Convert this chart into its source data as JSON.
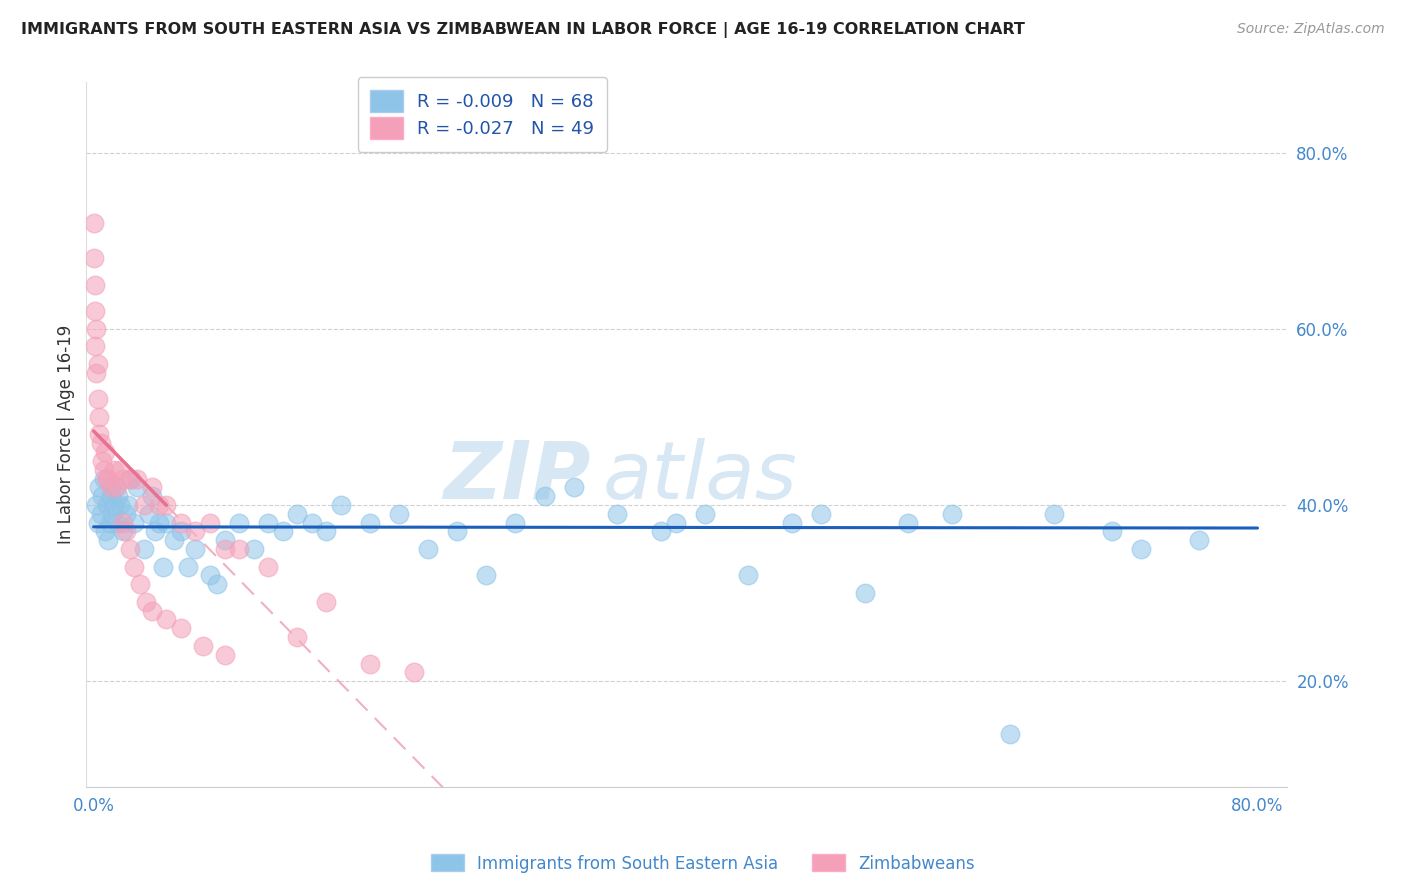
{
  "title": "IMMIGRANTS FROM SOUTH EASTERN ASIA VS ZIMBABWEAN IN LABOR FORCE | AGE 16-19 CORRELATION CHART",
  "source": "Source: ZipAtlas.com",
  "ylabel": "In Labor Force | Age 16-19",
  "y_ticks": [
    0.2,
    0.4,
    0.6,
    0.8
  ],
  "y_tick_labels": [
    "20.0%",
    "40.0%",
    "60.0%",
    "80.0%"
  ],
  "xlim": [
    -0.005,
    0.82
  ],
  "ylim": [
    0.08,
    0.88
  ],
  "legend_blue_r": "R = -0.009",
  "legend_blue_n": "N = 68",
  "legend_pink_r": "R = -0.027",
  "legend_pink_n": "N = 49",
  "blue_color": "#8EC4E8",
  "pink_color": "#F4A0B8",
  "blue_line_color": "#1A5FBB",
  "pink_line_color": "#E87090",
  "pink_dash_color": "#F0B0C0",
  "watermark_zip": "ZIP",
  "watermark_atlas": "atlas",
  "blue_x": [
    0.002,
    0.003,
    0.004,
    0.005,
    0.006,
    0.007,
    0.008,
    0.009,
    0.01,
    0.011,
    0.012,
    0.013,
    0.014,
    0.015,
    0.016,
    0.017,
    0.018,
    0.02,
    0.022,
    0.024,
    0.026,
    0.028,
    0.03,
    0.035,
    0.038,
    0.04,
    0.042,
    0.045,
    0.048,
    0.05,
    0.055,
    0.06,
    0.065,
    0.07,
    0.08,
    0.085,
    0.09,
    0.1,
    0.11,
    0.12,
    0.13,
    0.14,
    0.15,
    0.16,
    0.17,
    0.19,
    0.21,
    0.23,
    0.25,
    0.27,
    0.29,
    0.31,
    0.33,
    0.36,
    0.39,
    0.4,
    0.42,
    0.45,
    0.48,
    0.5,
    0.53,
    0.56,
    0.59,
    0.63,
    0.66,
    0.7,
    0.72,
    0.76
  ],
  "blue_y": [
    0.4,
    0.38,
    0.42,
    0.39,
    0.41,
    0.43,
    0.37,
    0.4,
    0.36,
    0.38,
    0.41,
    0.39,
    0.4,
    0.42,
    0.38,
    0.41,
    0.4,
    0.37,
    0.39,
    0.4,
    0.43,
    0.38,
    0.42,
    0.35,
    0.39,
    0.41,
    0.37,
    0.38,
    0.33,
    0.38,
    0.36,
    0.37,
    0.33,
    0.35,
    0.32,
    0.31,
    0.36,
    0.38,
    0.35,
    0.38,
    0.37,
    0.39,
    0.38,
    0.37,
    0.4,
    0.38,
    0.39,
    0.35,
    0.37,
    0.32,
    0.38,
    0.41,
    0.42,
    0.39,
    0.37,
    0.38,
    0.39,
    0.32,
    0.38,
    0.39,
    0.3,
    0.38,
    0.39,
    0.14,
    0.39,
    0.37,
    0.35,
    0.36
  ],
  "pink_x": [
    0.0,
    0.0,
    0.001,
    0.001,
    0.001,
    0.002,
    0.002,
    0.003,
    0.003,
    0.004,
    0.004,
    0.005,
    0.006,
    0.007,
    0.008,
    0.009,
    0.01,
    0.012,
    0.014,
    0.016,
    0.018,
    0.02,
    0.025,
    0.03,
    0.035,
    0.04,
    0.045,
    0.05,
    0.06,
    0.07,
    0.08,
    0.09,
    0.1,
    0.12,
    0.14,
    0.16,
    0.19,
    0.22,
    0.02,
    0.022,
    0.025,
    0.028,
    0.032,
    0.036,
    0.04,
    0.05,
    0.06,
    0.075,
    0.09
  ],
  "pink_y": [
    0.72,
    0.68,
    0.65,
    0.62,
    0.58,
    0.6,
    0.55,
    0.56,
    0.52,
    0.5,
    0.48,
    0.47,
    0.45,
    0.44,
    0.46,
    0.43,
    0.43,
    0.42,
    0.44,
    0.42,
    0.44,
    0.43,
    0.43,
    0.43,
    0.4,
    0.42,
    0.4,
    0.4,
    0.38,
    0.37,
    0.38,
    0.35,
    0.35,
    0.33,
    0.25,
    0.29,
    0.22,
    0.21,
    0.38,
    0.37,
    0.35,
    0.33,
    0.31,
    0.29,
    0.28,
    0.27,
    0.26,
    0.24,
    0.23
  ]
}
